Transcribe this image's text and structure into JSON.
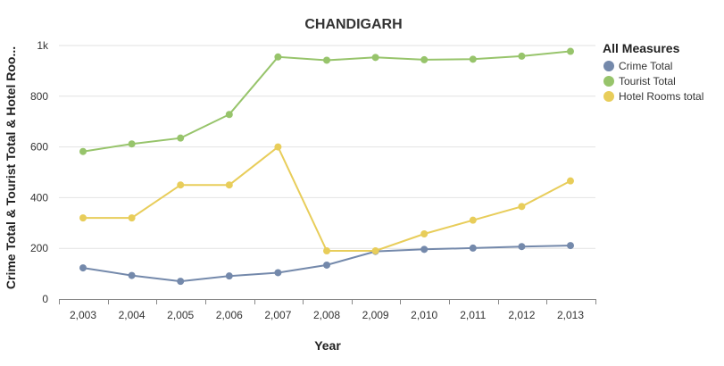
{
  "chart_data": {
    "type": "line",
    "title": "CHANDIGARH",
    "xlabel": "Year",
    "ylabel": "Crime Total & Tourist Total & Hotel Roo...",
    "x": [
      "2,003",
      "2,004",
      "2,005",
      "2,006",
      "2,007",
      "2,008",
      "2,009",
      "2,010",
      "2,011",
      "2,012",
      "2,013"
    ],
    "ylim": [
      0,
      1000
    ],
    "yticks": [
      0,
      200,
      400,
      600,
      800,
      1000
    ],
    "ytick_labels": [
      "0",
      "200",
      "400",
      "600",
      "800",
      "1k"
    ],
    "grid": true,
    "legend": {
      "title": "All Measures",
      "position": "top-right"
    },
    "series": [
      {
        "name": "Crime Total",
        "color": "#7489ab",
        "values": [
          123,
          93,
          70,
          91,
          104,
          134,
          188,
          196,
          201,
          207,
          211
        ]
      },
      {
        "name": "Tourist Total",
        "color": "#97c46b",
        "values": [
          582,
          612,
          635,
          728,
          955,
          942,
          953,
          944,
          946,
          958,
          977
        ]
      },
      {
        "name": "Hotel Rooms total",
        "color": "#e8cd5a",
        "values": [
          320,
          320,
          450,
          450,
          600,
          190,
          190,
          257,
          311,
          365,
          466
        ]
      }
    ]
  }
}
